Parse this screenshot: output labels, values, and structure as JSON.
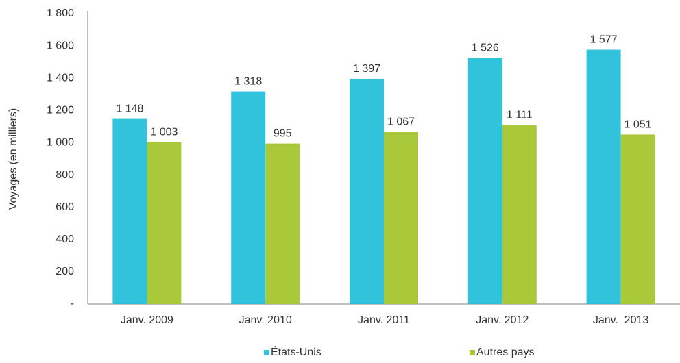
{
  "chart_data": {
    "type": "bar",
    "ylabel": "Voyages (en milliers)",
    "xlabel": "",
    "ylim": [
      0,
      1800
    ],
    "y_ticks": [
      {
        "value": 0,
        "label": "-"
      },
      {
        "value": 200,
        "label": "200"
      },
      {
        "value": 400,
        "label": "400"
      },
      {
        "value": 600,
        "label": "600"
      },
      {
        "value": 800,
        "label": "800"
      },
      {
        "value": 1000,
        "label": "1 000"
      },
      {
        "value": 1200,
        "label": "1 200"
      },
      {
        "value": 1400,
        "label": "1 400"
      },
      {
        "value": 1600,
        "label": "1 600"
      },
      {
        "value": 1800,
        "label": "1 800"
      }
    ],
    "categories": [
      "Janv. 2009",
      "Janv. 2010",
      "Janv. 2011",
      "Janv. 2012",
      "Janv.  2013"
    ],
    "series": [
      {
        "name": "États-Unis",
        "color": "#31c3dc",
        "values": [
          1148,
          1318,
          1397,
          1526,
          1577
        ],
        "labels": [
          "1 148",
          "1 318",
          "1 397",
          "1 526",
          "1 577"
        ]
      },
      {
        "name": "Autres pays",
        "color": "#a9c93a",
        "values": [
          1003,
          995,
          1067,
          1111,
          1051
        ],
        "labels": [
          "1 003",
          "995",
          "1 067",
          "1 111",
          "1 051"
        ]
      }
    ],
    "grid": false,
    "legend_position": "bottom"
  }
}
